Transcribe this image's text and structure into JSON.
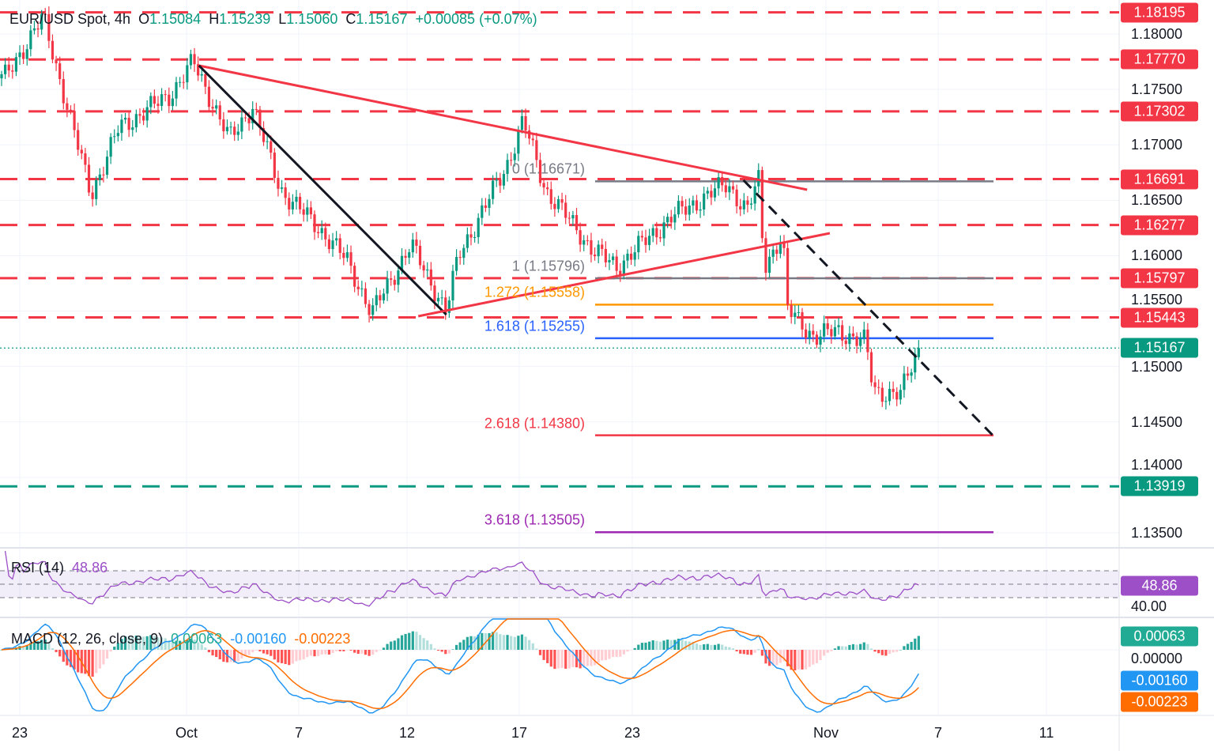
{
  "header": {
    "symbol": "EUR/USD Spot, 4h",
    "o_label": "O",
    "open": "1.15084",
    "h_label": "H",
    "high": "1.15239",
    "l_label": "L",
    "low": "1.15060",
    "c_label": "C",
    "close": "1.15167",
    "change": "+0.00085 (+0.07%)"
  },
  "chart_data": {
    "type": "candlestick",
    "title": "EUR/USD Spot, 4h",
    "colors": {
      "up": "#089981",
      "down": "#f23645",
      "resistance": "#f23645",
      "support": "#089981"
    },
    "price_axis": {
      "range": [
        1.1325,
        1.184
      ],
      "ticks": [
        "1.18000",
        "1.17500",
        "1.17000",
        "1.16500",
        "1.16000",
        "1.15500",
        "1.15000",
        "1.14500",
        "1.14000",
        "1.13500"
      ]
    },
    "time_axis": {
      "ticks": [
        {
          "label": "23",
          "date": "09-23"
        },
        {
          "label": "Oct",
          "date": "10-01"
        },
        {
          "label": "7",
          "date": "10-07"
        },
        {
          "label": "12",
          "date": "10-12"
        },
        {
          "label": "17",
          "date": "10-17"
        },
        {
          "label": "23",
          "date": "10-23"
        },
        {
          "label": "Nov",
          "date": "11-01"
        },
        {
          "label": "7",
          "date": "11-07"
        },
        {
          "label": "11",
          "date": "11-11"
        }
      ]
    },
    "levels": [
      {
        "value": "1.18195",
        "kind": "resistance"
      },
      {
        "value": "1.17770",
        "kind": "resistance"
      },
      {
        "value": "1.17302",
        "kind": "resistance"
      },
      {
        "value": "1.16691",
        "kind": "resistance"
      },
      {
        "value": "1.16277",
        "kind": "resistance"
      },
      {
        "value": "1.15797",
        "kind": "resistance"
      },
      {
        "value": "1.15443",
        "kind": "resistance"
      },
      {
        "value": "1.13919",
        "kind": "support"
      }
    ],
    "last_price": {
      "value": "1.15167",
      "color": "#089981"
    },
    "fibonacci": {
      "start": "10-20 20",
      "end": "11-09 00",
      "levels": [
        {
          "text": "0 (1.16671)",
          "price": 1.16671,
          "color": "#787b86"
        },
        {
          "text": "1 (1.15796)",
          "price": 1.15796,
          "color": "#787b86"
        },
        {
          "text": "1.272 (1.15558)",
          "price": 1.15558,
          "color": "#ff9800"
        },
        {
          "text": "1.618 (1.15255)",
          "price": 1.15255,
          "color": "#2962ff"
        },
        {
          "text": "2.618 (1.14380)",
          "price": 1.1438,
          "color": "#f23645"
        },
        {
          "text": "3.618 (1.13505)",
          "price": 1.13505,
          "color": "#9c27b0"
        }
      ]
    },
    "drawings": [
      {
        "kind": "trendline",
        "color": "#f23645",
        "style": "solid",
        "from": {
          "t": "10-01 16",
          "p": 1.17715
        },
        "to": {
          "t": "10-31 03",
          "p": 1.16595
        }
      },
      {
        "kind": "trendline",
        "color": "#131722",
        "style": "solid",
        "from": {
          "t": "10-01 16",
          "p": 1.17715
        },
        "to": {
          "t": "10-13 18",
          "p": 1.15468
        }
      },
      {
        "kind": "trendline",
        "color": "#f23645",
        "style": "solid",
        "from": {
          "t": "10-12 12",
          "p": 1.15454
        },
        "to": {
          "t": "11-01 05",
          "p": 1.16203
        }
      },
      {
        "kind": "trendline",
        "color": "#131722",
        "style": "dashed",
        "from": {
          "t": "10-28 04",
          "p": 1.16681
        },
        "to": {
          "t": "11-09 00",
          "p": 1.14384
        }
      }
    ],
    "price_path": [
      {
        "t": "09-22 06",
        "p": 1.176
      },
      {
        "t": "09-24 03",
        "p": 1.1815
      },
      {
        "t": "09-26 10",
        "p": 1.1655
      },
      {
        "t": "09-27 18",
        "p": 1.1715
      },
      {
        "t": "09-30 05",
        "p": 1.1745
      },
      {
        "t": "10-01 09",
        "p": 1.1775
      },
      {
        "t": "10-03 07",
        "p": 1.1705
      },
      {
        "t": "10-04 13",
        "p": 1.1735
      },
      {
        "t": "10-06 00",
        "p": 1.166
      },
      {
        "t": "10-08 04",
        "p": 1.162
      },
      {
        "t": "10-09 06",
        "p": 1.1595
      },
      {
        "t": "10-10 09",
        "p": 1.1548
      },
      {
        "t": "10-12 04",
        "p": 1.161
      },
      {
        "t": "10-13 18",
        "p": 1.155
      },
      {
        "t": "10-14 07",
        "p": 1.16
      },
      {
        "t": "10-16 10",
        "p": 1.168
      },
      {
        "t": "10-17 05",
        "p": 1.1722
      },
      {
        "t": "10-18 09",
        "p": 1.166
      },
      {
        "t": "10-20 22",
        "p": 1.1605
      },
      {
        "t": "10-22 04",
        "p": 1.159
      },
      {
        "t": "10-24 20",
        "p": 1.1635
      },
      {
        "t": "10-27 10",
        "p": 1.1665
      },
      {
        "t": "10-28 08",
        "p": 1.164
      },
      {
        "t": "10-28 21",
        "p": 1.1668
      },
      {
        "t": "10-29 03",
        "p": 1.159
      },
      {
        "t": "10-30 00",
        "p": 1.162
      },
      {
        "t": "10-30 04",
        "p": 1.1552
      },
      {
        "t": "10-31 11",
        "p": 1.1527
      },
      {
        "t": "11-01 15",
        "p": 1.1532
      },
      {
        "t": "11-03 03",
        "p": 1.1522
      },
      {
        "t": "11-03 13",
        "p": 1.1478
      },
      {
        "t": "11-05 00",
        "p": 1.1475
      },
      {
        "t": "11-05 23",
        "p": 1.15167
      }
    ],
    "last_candle": {
      "open": 1.15084,
      "high": 1.15239,
      "low": 1.1506,
      "close": 1.15167
    },
    "rsi": {
      "title": "RSI (14)",
      "value": "48.86",
      "color": "#9c4fc7",
      "bands": [
        70,
        50,
        30
      ],
      "axis_tick": "40.00"
    },
    "macd": {
      "title": "MACD (12, 26, close, 9)",
      "histogram": "0.00063",
      "macd": "-0.00160",
      "signal": "-0.00223",
      "axis_tick": "0.00000",
      "colors": {
        "histogram": "#22ab94",
        "macd": "#2196f3",
        "signal": "#ff6d00"
      }
    }
  }
}
